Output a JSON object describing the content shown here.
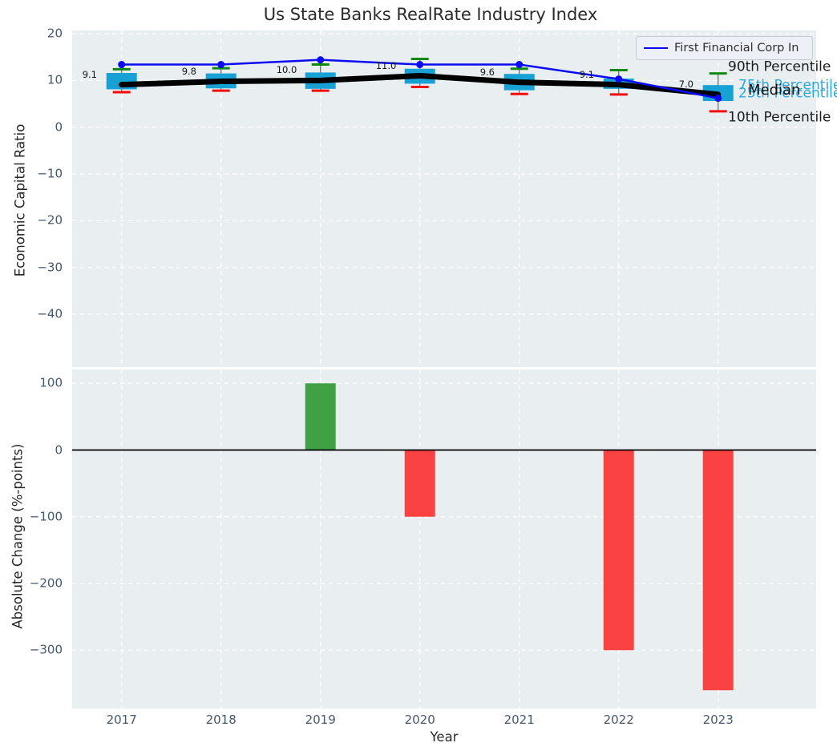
{
  "title": "Us State Banks RealRate Industry Index",
  "legend": {
    "label": "First Financial Corp In",
    "line_color": "#0b0bf2"
  },
  "percentile_labels": [
    {
      "text": "90th Percentile",
      "color": "#1c1c1c"
    },
    {
      "text": "75th Percentile",
      "color": "#2aa8dc"
    },
    {
      "text": "Median",
      "color": "#111111"
    },
    {
      "text": "25th Percentile",
      "color": "#2aa8dc"
    },
    {
      "text": "10th Percentile",
      "color": "#1c1c1c"
    }
  ],
  "colors": {
    "panel_background": "#e9eef1",
    "gridline": "#ffffff",
    "box_fill": "#18a1d5",
    "whisker_line": "#707070",
    "cap_90th": "#0f8a0f",
    "cap_10th": "#f40b0b",
    "median_line": "#000000",
    "company_line": "#0b0bf2",
    "bar_positive": "#3fa044",
    "bar_negative": "#fb4242",
    "zero_line": "#000000",
    "tick_label": "#46586d"
  },
  "chart_data": [
    {
      "type": "boxplot",
      "title": "Us State Banks RealRate Industry Index",
      "ylabel": "Economic Capital Ratio",
      "categories": [
        "2017",
        "2018",
        "2019",
        "2020",
        "2021",
        "2022",
        "2023"
      ],
      "yticks": [
        20,
        10,
        0,
        -10,
        -20,
        -30,
        -40
      ],
      "ylim": [
        -51,
        21
      ],
      "grid": true,
      "legend_position": "upper right",
      "series": [
        {
          "name": "First Financial Corp In",
          "role": "company-line",
          "values": [
            13.4,
            13.4,
            14.4,
            13.4,
            13.4,
            10.3,
            6.2
          ]
        },
        {
          "name": "Median",
          "role": "median-line",
          "values": [
            9.1,
            9.8,
            10.0,
            11.0,
            9.6,
            9.1,
            7.0
          ]
        },
        {
          "name": "90th Percentile",
          "role": "upper-whisker-cap",
          "values": [
            12.4,
            12.6,
            13.4,
            14.6,
            12.5,
            12.2,
            11.5
          ]
        },
        {
          "name": "75th Percentile",
          "role": "box-top",
          "values": [
            11.6,
            11.5,
            11.7,
            12.5,
            11.4,
            10.4,
            9.0
          ]
        },
        {
          "name": "25th Percentile",
          "role": "box-bottom",
          "values": [
            8.1,
            8.3,
            8.2,
            9.3,
            7.9,
            8.2,
            5.6
          ]
        },
        {
          "name": "10th Percentile",
          "role": "lower-whisker-cap",
          "values": [
            7.5,
            7.8,
            7.8,
            8.6,
            7.1,
            7.0,
            3.4
          ]
        }
      ],
      "median_value_labels": [
        "9.1",
        "9.8",
        "10.0",
        "11.0",
        "9.6",
        "9.1",
        "7.0"
      ]
    },
    {
      "type": "bar",
      "ylabel": "Absolute Change (%-points)",
      "xlabel": "Year",
      "categories": [
        "2017",
        "2018",
        "2019",
        "2020",
        "2021",
        "2022",
        "2023"
      ],
      "values": [
        0,
        0,
        100,
        -100,
        0,
        -300,
        -360
      ],
      "yticks": [
        100,
        0,
        -100,
        -200,
        -300
      ],
      "ylim": [
        -387,
        121
      ],
      "grid": true,
      "zero_line": true
    }
  ]
}
